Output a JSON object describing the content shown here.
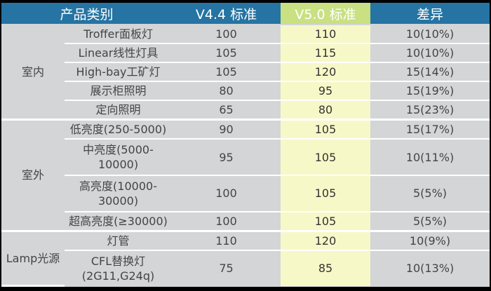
{
  "colors": {
    "header_bg": "#2574a3",
    "header_highlight_bg": "#c9e083",
    "body_bg": "#d4d5d7",
    "highlight_col_bg": "#f7f8c8",
    "row_separator": "#ffffff"
  },
  "table": {
    "headers": [
      "产品类别",
      "V4.4 标准",
      "V5.0 标准",
      "差异"
    ],
    "groups": [
      {
        "category": "室内",
        "rows": [
          {
            "product": "Troffer面板灯",
            "v44": "100",
            "v50": "110",
            "diff": "10(10%)"
          },
          {
            "product": "Linear线性灯具",
            "v44": "105",
            "v50": "115",
            "diff": "10(10%)"
          },
          {
            "product": "High-bay工矿灯",
            "v44": "105",
            "v50": "120",
            "diff": "15(14%)"
          },
          {
            "product": "展示柜照明",
            "v44": "80",
            "v50": "95",
            "diff": "15(19%)"
          },
          {
            "product": "定向照明",
            "v44": "65",
            "v50": "80",
            "diff": "15(23%)"
          }
        ]
      },
      {
        "category": "室外",
        "rows": [
          {
            "product": "低亮度(250-5000)",
            "v44": "90",
            "v50": "105",
            "diff": "15(17%)"
          },
          {
            "product": "中亮度(5000-10000)",
            "v44": "95",
            "v50": "105",
            "diff": "10(11%)"
          },
          {
            "product": "高亮度(10000-30000)",
            "v44": "100",
            "v50": "105",
            "diff": "5(5%)"
          },
          {
            "product": "超高亮度(≥30000)",
            "v44": "100",
            "v50": "105",
            "diff": "5(5%)"
          }
        ]
      },
      {
        "category": "Lamp光源",
        "rows": [
          {
            "product": "灯管",
            "v44": "110",
            "v50": "120",
            "diff": "10(9%)"
          },
          {
            "product": "CFL替换灯(2G11,G24q)",
            "v44": "75",
            "v50": "85",
            "diff": "10(13%)"
          }
        ]
      }
    ]
  }
}
